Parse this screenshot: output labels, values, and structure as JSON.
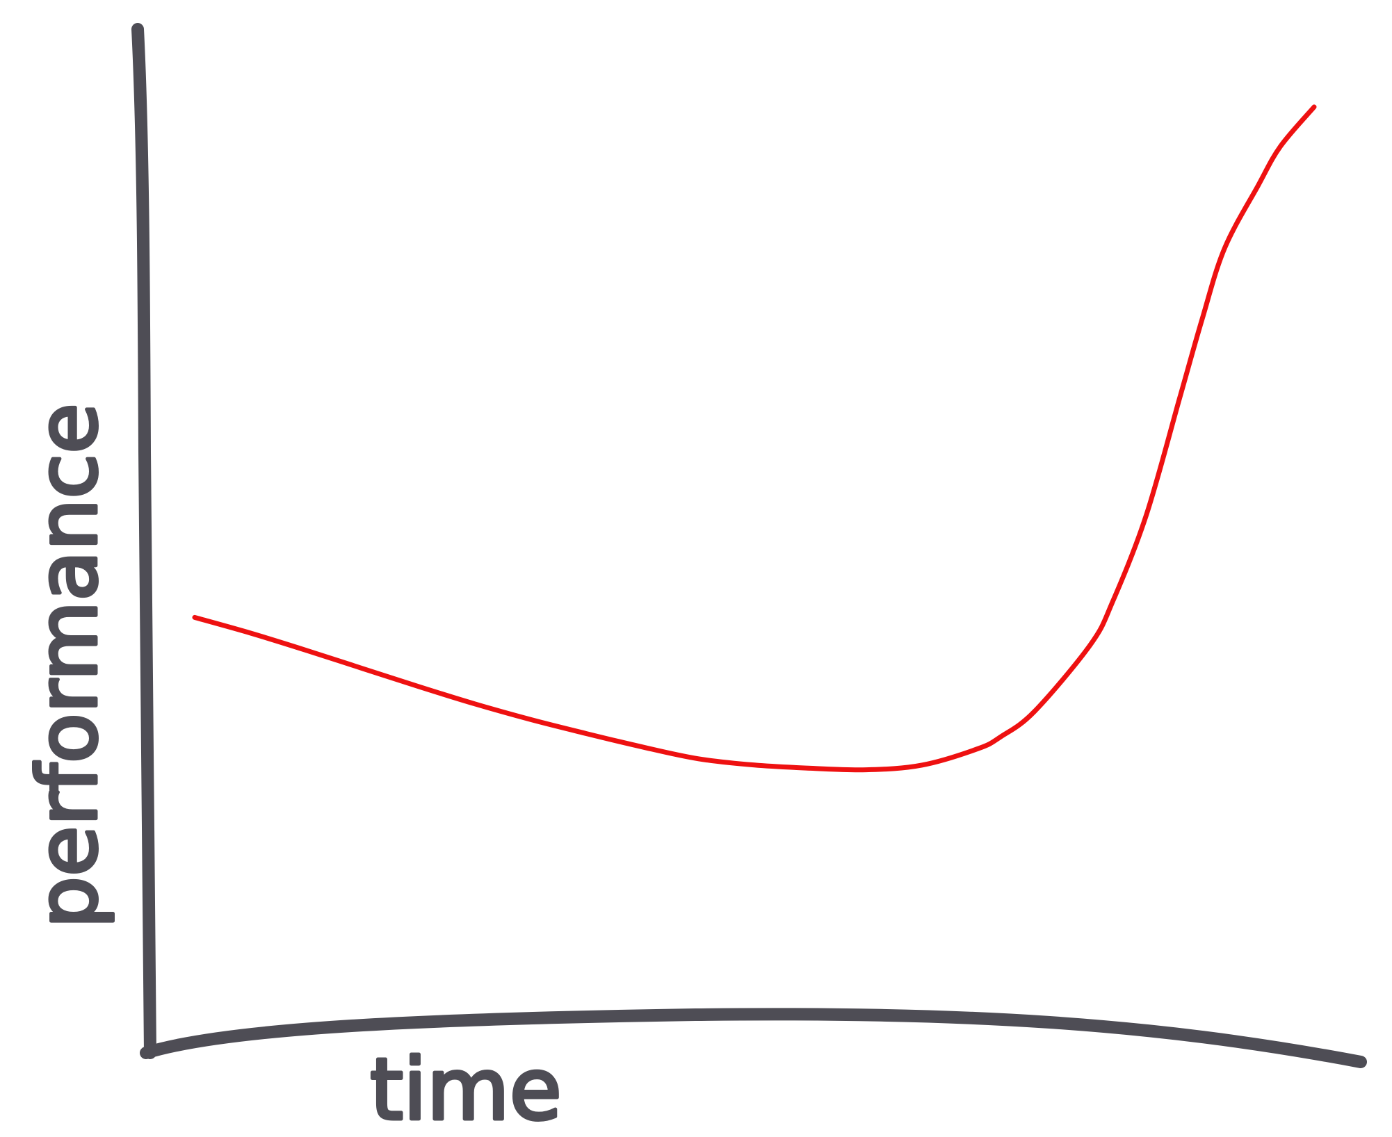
{
  "chart_data": {
    "type": "line",
    "title": "",
    "xlabel": "time",
    "ylabel": "performance",
    "grid": false,
    "xlim": [
      0,
      100
    ],
    "ylim": [
      0,
      100
    ],
    "series": [
      {
        "color": "#ee1111",
        "x": [
          0,
          5,
          10,
          15,
          20,
          25,
          30,
          35,
          40,
          45,
          50,
          55,
          60,
          65,
          70,
          72,
          75,
          80,
          82,
          85,
          88,
          90,
          92,
          95,
          97,
          100
        ],
        "y": [
          32,
          30,
          27.8,
          25.5,
          23.2,
          21,
          19,
          17.2,
          15.5,
          14,
          13.2,
          12.8,
          12.6,
          13.2,
          15.3,
          16.8,
          20,
          28.5,
          34,
          45,
          60,
          70,
          79,
          87,
          92,
          97
        ]
      }
    ]
  }
}
